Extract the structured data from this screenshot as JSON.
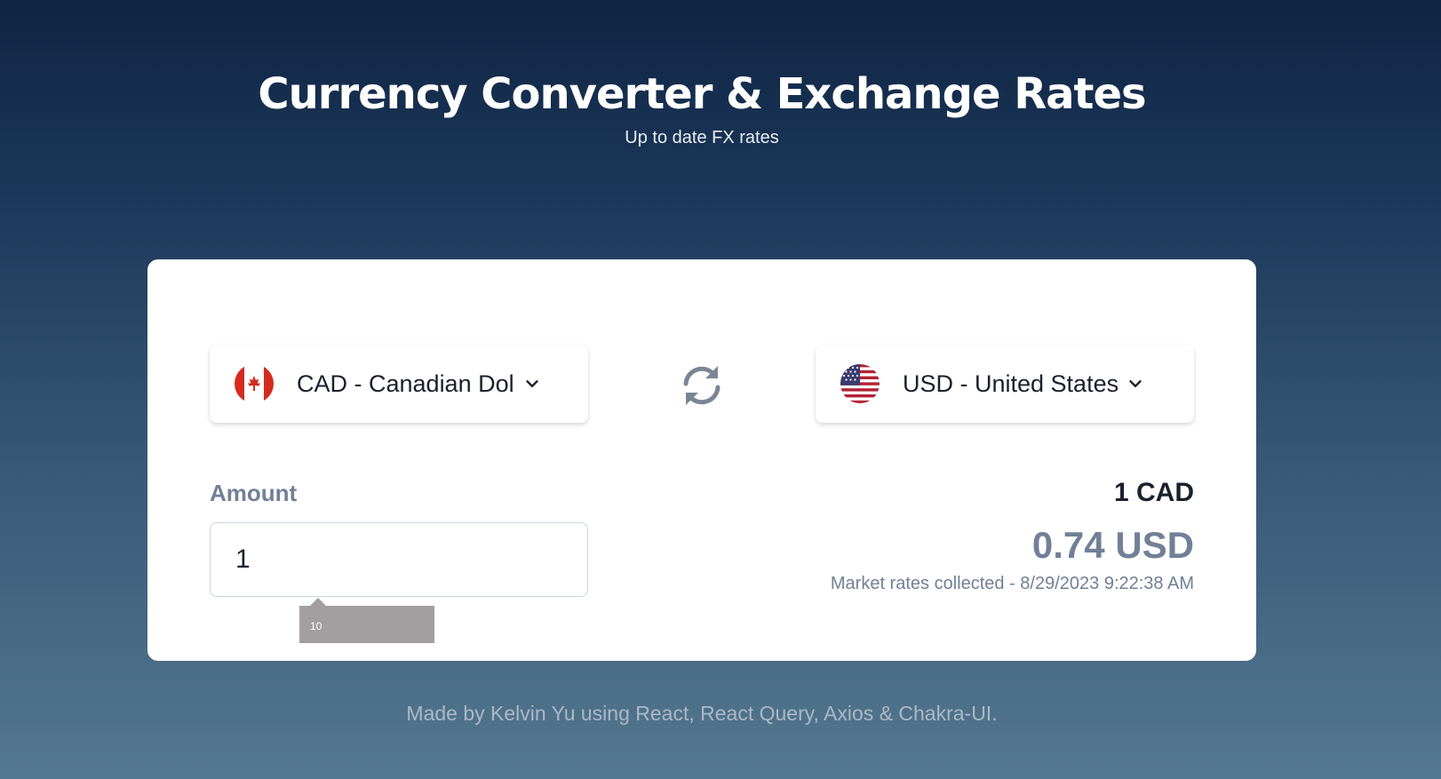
{
  "header": {
    "title": "Currency Converter & Exchange Rates",
    "subtitle": "Up to date FX rates"
  },
  "converter": {
    "from": {
      "label": "CAD - Canadian Dol",
      "flag": "canada-flag"
    },
    "to": {
      "label": "USD - United States",
      "flag": "usa-flag"
    },
    "swap_icon": "swap-arrows-icon",
    "amount_label": "Amount",
    "amount_value": "1",
    "autocomplete_suggestion": "10",
    "result": {
      "base": "1 CAD",
      "converted": "0.74 USD",
      "timestamp": "Market rates collected - 8/29/2023 9:22:38 AM"
    }
  },
  "footer": {
    "text": "Made by Kelvin Yu using React, React Query, Axios & Chakra-UI."
  },
  "colors": {
    "background_top": "#0f2443",
    "background_bottom": "#54788f",
    "card": "#ffffff",
    "muted_text": "#718096",
    "dark_text": "#1a202c",
    "canada_red": "#d52b1e",
    "usa_red": "#b22234",
    "usa_blue": "#3c3b6e"
  }
}
